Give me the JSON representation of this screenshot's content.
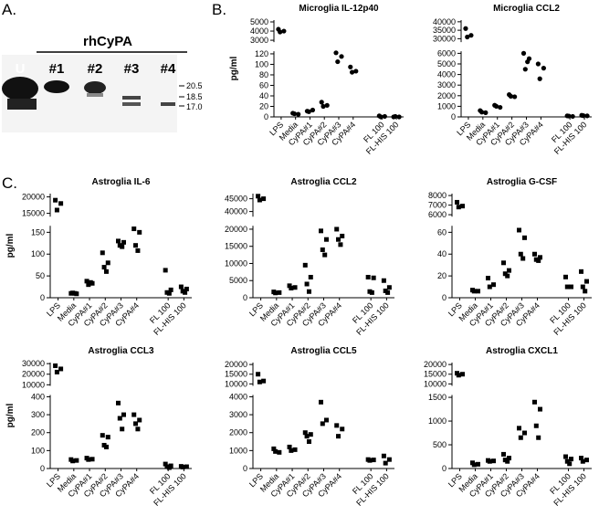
{
  "panels": {
    "a": "A.",
    "b": "B.",
    "c": "C."
  },
  "blot": {
    "header": "rhCyPA",
    "lanes": [
      "U",
      "#1",
      "#2",
      "#3",
      "#4"
    ],
    "markers": [
      "20.5",
      "18.5",
      "17.0"
    ]
  },
  "chart_data": [
    {
      "type": "dot",
      "title": "Microglia IL-12p40",
      "ylabel": "pg/ml",
      "marker": "circle",
      "color": "#000000",
      "categories": [
        "LPS",
        "Media",
        "CyPA#1",
        "CyPA#2",
        "CyPA#3",
        "CyPA#4",
        null,
        "FL 100",
        "FL-HIS 100"
      ],
      "values": [
        [
          4200,
          4000,
          3900
        ],
        [
          7,
          5,
          6
        ],
        [
          11,
          13,
          10
        ],
        [
          28,
          22,
          20
        ],
        [
          122,
          115,
          105
        ],
        [
          95,
          87,
          85
        ],
        null,
        [
          2,
          1,
          0
        ],
        [
          0,
          0,
          1
        ]
      ],
      "segments": [
        {
          "ylim": [
            0,
            125
          ],
          "yticks": [
            0,
            20,
            40,
            60,
            80,
            100,
            120
          ]
        },
        {
          "ylim": [
            2800,
            5200
          ],
          "yticks": [
            3000,
            4000,
            5000
          ]
        }
      ]
    },
    {
      "type": "dot",
      "title": "Microglia CCL2",
      "marker": "circle",
      "color": "#000000",
      "categories": [
        "LPS",
        "Media",
        "CyPA#1",
        "CyPA#2",
        "CyPA#3",
        "CyPA#4",
        null,
        "FL 100",
        "FL-HIS 100"
      ],
      "values": [
        [
          36000,
          32000,
          31000
        ],
        [
          600,
          400,
          450
        ],
        [
          1100,
          900,
          1000
        ],
        [
          2100,
          1900,
          1950
        ],
        [
          6000,
          5500,
          4500,
          5200
        ],
        [
          5000,
          4600,
          3600
        ],
        null,
        [
          100,
          50,
          80
        ],
        [
          150,
          100,
          120
        ]
      ],
      "segments": [
        {
          "ylim": [
            0,
            6200
          ],
          "yticks": [
            0,
            1000,
            2000,
            3000,
            4000,
            5000,
            6000
          ]
        },
        {
          "ylim": [
            28000,
            41000
          ],
          "yticks": [
            30000,
            35000,
            40000
          ]
        }
      ]
    },
    {
      "type": "dot",
      "title": "Astroglia IL-6",
      "ylabel": "pg/ml",
      "marker": "square",
      "color": "#000000",
      "categories": [
        "LPS",
        "Media",
        "CyPA#1",
        "CyPA#2",
        "CyPA#3",
        "CyPA#4",
        null,
        "FL 100",
        "FL-HIS 100"
      ],
      "values": [
        [
          19000,
          18000,
          16000
        ],
        [
          10,
          9,
          11,
          10
        ],
        [
          38,
          33,
          30,
          35
        ],
        [
          103,
          80,
          70,
          60
        ],
        [
          130,
          127,
          120,
          117
        ],
        [
          158,
          150,
          120,
          108
        ],
        null,
        [
          63,
          18,
          12,
          10
        ],
        [
          25,
          20,
          15,
          12
        ]
      ],
      "segments": [
        {
          "ylim": [
            0,
            165
          ],
          "yticks": [
            0,
            50,
            100,
            150
          ]
        },
        {
          "ylim": [
            14000,
            21000
          ],
          "yticks": [
            15000,
            20000
          ]
        }
      ]
    },
    {
      "type": "dot",
      "title": "Astroglia CCL2",
      "marker": "square",
      "color": "#000000",
      "categories": [
        "LPS",
        "Media",
        "CyPA#1",
        "CyPA#2",
        "CyPA#3",
        "CyPA#4",
        null,
        "FL 100",
        "FL-HIS 100"
      ],
      "values": [
        [
          46000,
          45000,
          44500
        ],
        [
          1700,
          1500,
          1400
        ],
        [
          3500,
          3000,
          2800
        ],
        [
          9500,
          6000,
          4000,
          1800
        ],
        [
          19500,
          17000,
          14000,
          12500
        ],
        [
          20000,
          18000,
          17000,
          15500
        ],
        null,
        [
          6000,
          5800,
          1800,
          1500
        ],
        [
          5000,
          3000,
          2000,
          1500
        ]
      ],
      "segments": [
        {
          "ylim": [
            0,
            21000
          ],
          "yticks": [
            0,
            5000,
            10000,
            15000,
            20000
          ]
        },
        {
          "ylim": [
            38000,
            47000
          ],
          "yticks": [
            40000,
            45000
          ]
        }
      ]
    },
    {
      "type": "dot",
      "title": "Astroglia G-CSF",
      "marker": "square",
      "color": "#000000",
      "categories": [
        "LPS",
        "Media",
        "CyPA#1",
        "CyPA#2",
        "CyPA#3",
        "CyPA#4",
        null,
        "FL 100",
        "FL-HIS 100"
      ],
      "values": [
        [
          7300,
          6900,
          6800
        ],
        [
          7,
          6,
          6
        ],
        [
          18,
          12,
          10
        ],
        [
          32,
          25,
          22,
          20
        ],
        [
          62,
          55,
          40,
          36
        ],
        [
          40,
          37,
          35,
          34
        ],
        null,
        [
          19,
          10,
          10
        ],
        [
          24,
          15,
          10,
          6
        ]
      ],
      "segments": [
        {
          "ylim": [
            0,
            66
          ],
          "yticks": [
            0,
            20,
            40,
            60
          ]
        },
        {
          "ylim": [
            5800,
            8200
          ],
          "yticks": [
            6000,
            7000,
            8000
          ]
        }
      ]
    },
    {
      "type": "dot",
      "title": "Astroglia CCL3",
      "ylabel": "pg/ml",
      "marker": "square",
      "color": "#000000",
      "categories": [
        "LPS",
        "Media",
        "CyPA#1",
        "CyPA#2",
        "CyPA#3",
        "CyPA#4",
        null,
        "FL 100",
        "FL-HIS 100"
      ],
      "values": [
        [
          28000,
          25000,
          22000
        ],
        [
          50,
          45,
          42
        ],
        [
          58,
          52,
          50
        ],
        [
          185,
          175,
          130,
          120
        ],
        [
          365,
          300,
          280,
          220
        ],
        [
          300,
          270,
          250,
          220
        ],
        null,
        [
          25,
          15,
          10,
          5
        ],
        [
          12,
          10,
          8
        ]
      ],
      "segments": [
        {
          "ylim": [
            0,
            410
          ],
          "yticks": [
            0,
            100,
            200,
            300,
            400
          ]
        },
        {
          "ylim": [
            9000,
            31000
          ],
          "yticks": [
            10000,
            20000,
            30000
          ]
        }
      ]
    },
    {
      "type": "dot",
      "title": "Astroglia CCL5",
      "marker": "square",
      "color": "#000000",
      "categories": [
        "LPS",
        "Media",
        "CyPA#1",
        "CyPA#2",
        "CyPA#3",
        "CyPA#4",
        null,
        "FL 100",
        "FL-HIS 100"
      ],
      "values": [
        [
          15000,
          11500,
          11000
        ],
        [
          1100,
          900,
          950
        ],
        [
          1200,
          1050,
          1000
        ],
        [
          2000,
          1900,
          1800,
          1500
        ],
        [
          3700,
          2700,
          2500
        ],
        [
          2400,
          2200,
          1800
        ],
        null,
        [
          500,
          480,
          450
        ],
        [
          700,
          500,
          300
        ]
      ],
      "segments": [
        {
          "ylim": [
            0,
            4100
          ],
          "yticks": [
            0,
            1000,
            2000,
            3000,
            4000
          ]
        },
        {
          "ylim": [
            9000,
            21000
          ],
          "yticks": [
            10000,
            15000,
            20000
          ]
        }
      ]
    },
    {
      "type": "dot",
      "title": "Astroglia CXCL1",
      "marker": "square",
      "color": "#000000",
      "categories": [
        "LPS",
        "Media",
        "CyPA#1",
        "CyPA#2",
        "CyPA#3",
        "CyPA#4",
        null,
        "FL 100",
        "FL-HIS 100"
      ],
      "values": [
        [
          15500,
          15000,
          14500
        ],
        [
          120,
          90,
          80
        ],
        [
          170,
          160,
          150
        ],
        [
          300,
          220,
          180,
          150
        ],
        [
          850,
          750,
          650
        ],
        [
          1400,
          1250,
          900,
          650
        ],
        null,
        [
          250,
          200,
          150,
          100
        ],
        [
          220,
          180,
          150
        ]
      ],
      "segments": [
        {
          "ylim": [
            0,
            1550
          ],
          "yticks": [
            0,
            500,
            1000,
            1500
          ]
        },
        {
          "ylim": [
            9000,
            21000
          ],
          "yticks": [
            10000,
            15000,
            20000
          ]
        }
      ]
    }
  ]
}
